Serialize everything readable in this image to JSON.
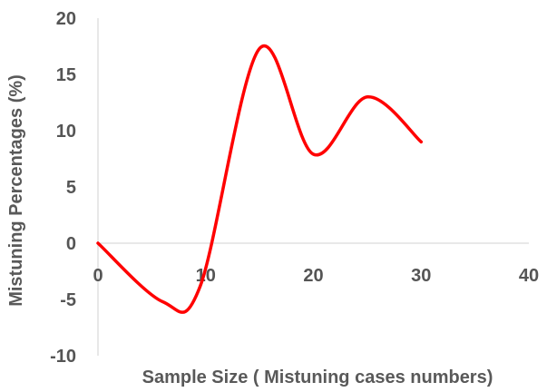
{
  "chart_data": {
    "type": "line",
    "title": "",
    "xlabel": "Sample Size ( Mistuning cases numbers)",
    "ylabel": "Mistuning Percentages (%)",
    "xlim": [
      0,
      40
    ],
    "ylim": [
      -10,
      20
    ],
    "xticks": [
      0,
      10,
      20,
      30,
      40
    ],
    "yticks": [
      -10,
      -5,
      0,
      5,
      10,
      15,
      20
    ],
    "grid": false,
    "smooth": true,
    "series": [
      {
        "color": "#ff0000",
        "x": [
          0,
          6,
          9.5,
          15,
          20,
          25,
          30
        ],
        "y": [
          0,
          -5.2,
          -3.8,
          17.3,
          7.9,
          13,
          9
        ]
      }
    ]
  }
}
